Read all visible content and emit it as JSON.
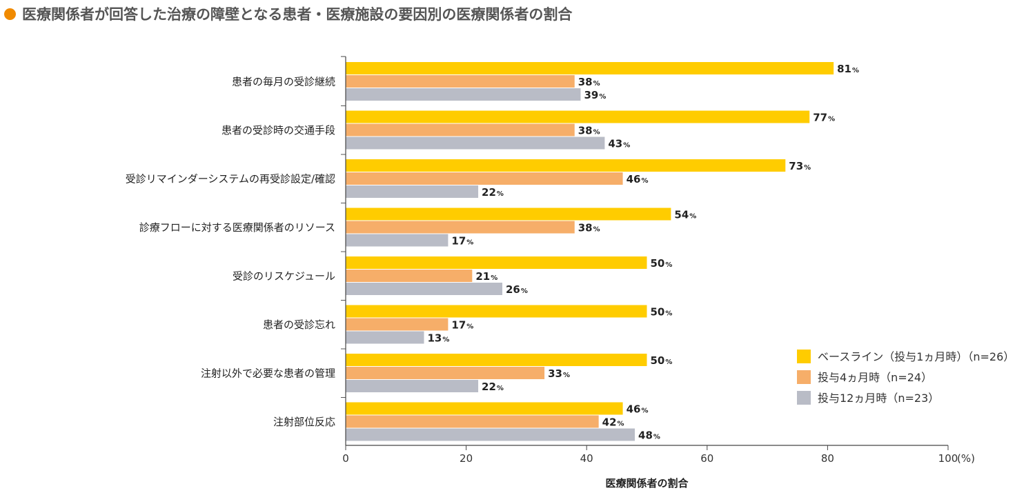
{
  "title": "医療関係者が回答した治療の障壁となる患者・医療施設の要因別の医療関係者の割合",
  "colors": {
    "title_dot": "#f08a00",
    "baseline": "#ffcc00",
    "month4": "#f6ae69",
    "month12": "#b9bcc6"
  },
  "chart_data": {
    "type": "bar",
    "orientation": "horizontal",
    "categories": [
      "患者の毎月の受診継続",
      "患者の受診時の交通手段",
      "受診リマインダーシステムの再受診設定/確認",
      "診療フローに対する医療関係者のリソース",
      "受診のリスケジュール",
      "患者の受診忘れ",
      "注射以外で必要な患者の管理",
      "注射部位反応"
    ],
    "series": [
      {
        "name": "ベースライン（投与1ヵ月時）（n=26）",
        "values": [
          81,
          77,
          73,
          54,
          50,
          50,
          50,
          46
        ]
      },
      {
        "name": "投与4ヵ月時（n=24）",
        "values": [
          38,
          38,
          46,
          38,
          21,
          17,
          33,
          42
        ]
      },
      {
        "name": "投与12ヵ月時（n=23）",
        "values": [
          39,
          43,
          22,
          17,
          26,
          13,
          22,
          48
        ]
      }
    ],
    "value_suffix": "%",
    "xlabel": "医療関係者の割合",
    "xlim": [
      0,
      100
    ],
    "xticks": [
      "0",
      "20",
      "40",
      "60",
      "80",
      "100"
    ],
    "xunit": "(%)",
    "legend_position": "bottom-right"
  }
}
